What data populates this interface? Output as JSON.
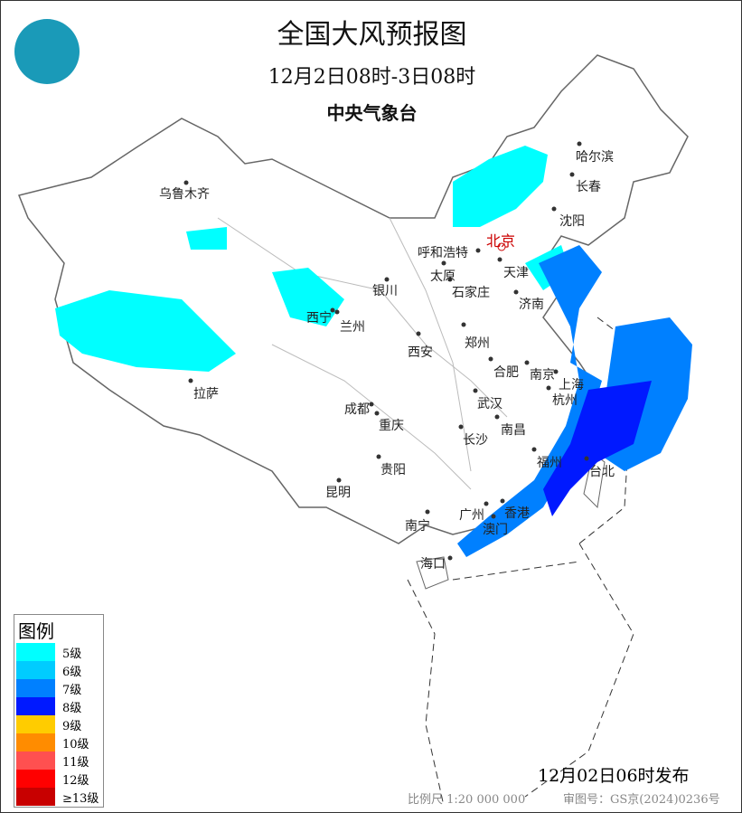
{
  "header": {
    "title": "全国大风预报图",
    "period": "12月2日08时-3日08时",
    "agency": "中央气象台"
  },
  "logo": {
    "icon": "cma-logo"
  },
  "cities": [
    {
      "name": "乌鲁木齐"
    },
    {
      "name": "哈尔滨"
    },
    {
      "name": "长春"
    },
    {
      "name": "沈阳"
    },
    {
      "name": "北京",
      "capital": true
    },
    {
      "name": "呼和浩特"
    },
    {
      "name": "天津"
    },
    {
      "name": "银川"
    },
    {
      "name": "太原"
    },
    {
      "name": "石家庄"
    },
    {
      "name": "济南"
    },
    {
      "name": "西宁"
    },
    {
      "name": "兰州"
    },
    {
      "name": "郑州"
    },
    {
      "name": "西安"
    },
    {
      "name": "合肥"
    },
    {
      "name": "南京"
    },
    {
      "name": "上海"
    },
    {
      "name": "成都"
    },
    {
      "name": "武汉"
    },
    {
      "name": "杭州"
    },
    {
      "name": "拉萨"
    },
    {
      "name": "重庆"
    },
    {
      "name": "南昌"
    },
    {
      "name": "长沙"
    },
    {
      "name": "福州"
    },
    {
      "name": "台北"
    },
    {
      "name": "贵阳"
    },
    {
      "name": "昆明"
    },
    {
      "name": "广州"
    },
    {
      "name": "香港"
    },
    {
      "name": "澳门"
    },
    {
      "name": "南宁"
    },
    {
      "name": "海口"
    }
  ],
  "legend": {
    "title": "图例",
    "items": [
      {
        "label": "5级",
        "color": "#00ffff"
      },
      {
        "label": "6级",
        "color": "#00ccff"
      },
      {
        "label": "7级",
        "color": "#0080ff"
      },
      {
        "label": "8级",
        "color": "#0019ff"
      },
      {
        "label": "9级",
        "color": "#ffcc00"
      },
      {
        "label": "10级",
        "color": "#ff8c00"
      },
      {
        "label": "11级",
        "color": "#ff5050"
      },
      {
        "label": "12级",
        "color": "#ff0000"
      },
      {
        "label": "≥13级",
        "color": "#c80000"
      }
    ]
  },
  "footer": {
    "issued": "12月02日06时发布",
    "scale": "比例尺 1:20 000 000",
    "review_no": "审图号：GS京(2024)0236号"
  }
}
